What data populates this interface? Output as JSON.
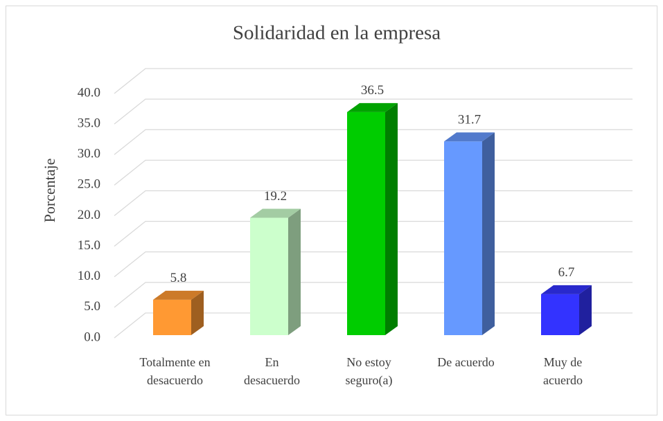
{
  "chart_data": {
    "type": "bar3d",
    "title": "Solidaridad en la empresa",
    "y_label": "Porcentaje",
    "categories": [
      "Totalmente en desacuerdo",
      "En desacuerdo",
      "No estoy seguro(a)",
      "De acuerdo",
      "Muy de acuerdo"
    ],
    "values": [
      5.8,
      19.2,
      36.5,
      31.7,
      6.7
    ],
    "colors": [
      "#ff9933",
      "#ccffcc",
      "#00cc00",
      "#6699ff",
      "#3333ff"
    ],
    "ylim": [
      0,
      40
    ],
    "yticks": [
      {
        "value": 0,
        "label": "0.0"
      },
      {
        "value": 5,
        "label": "5.0"
      },
      {
        "value": 10,
        "label": "10.0"
      },
      {
        "value": 15,
        "label": "15.0"
      },
      {
        "value": 20,
        "label": "20.0"
      },
      {
        "value": 25,
        "label": "25.0"
      },
      {
        "value": 30,
        "label": "30.0"
      },
      {
        "value": 35,
        "label": "35.0"
      },
      {
        "value": 40,
        "label": "40.0"
      }
    ],
    "grid": true
  }
}
